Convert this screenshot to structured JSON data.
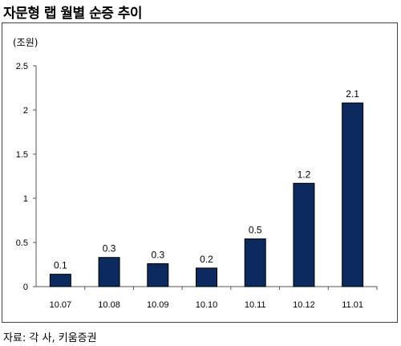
{
  "title": "자문형 랩 월별 순증 추이",
  "unit_label": "(조원)",
  "source": "자료: 각 사, 키움증권",
  "chart_data": {
    "type": "bar",
    "categories": [
      "10.07",
      "10.08",
      "10.09",
      "10.10",
      "10.11",
      "10.12",
      "11.01"
    ],
    "values": [
      0.14,
      0.33,
      0.26,
      0.21,
      0.54,
      1.17,
      2.08
    ],
    "data_labels": [
      "0.1",
      "0.3",
      "0.3",
      "0.2",
      "0.5",
      "1.2",
      "2.1"
    ],
    "ylim": [
      0,
      2.5
    ],
    "yticks": [
      "0",
      "0.5",
      "1",
      "1.5",
      "2",
      "2.5"
    ],
    "grid": false,
    "bar_color": "#0d2a5e"
  }
}
